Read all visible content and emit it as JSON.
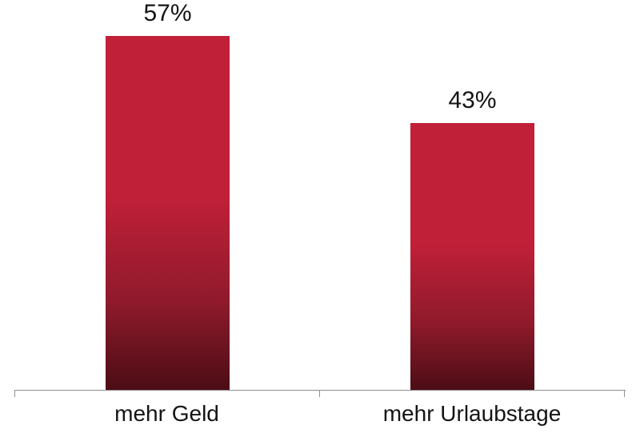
{
  "chart_data": {
    "type": "bar",
    "categories": [
      "mehr Geld",
      "mehr Urlaubstage"
    ],
    "values": [
      57,
      43
    ],
    "value_labels": [
      "57%",
      "43%"
    ],
    "unit": "%",
    "title": "",
    "xlabel": "",
    "ylabel": "",
    "ylim": [
      0,
      63
    ],
    "grid": false,
    "legend": false,
    "colors": {
      "bar_top": "#c12039",
      "bar_mid": "#8f1a2b",
      "bar_bottom": "#4c0d15",
      "axis": "#909090",
      "label": "#141414",
      "background": "#ffffff"
    }
  }
}
